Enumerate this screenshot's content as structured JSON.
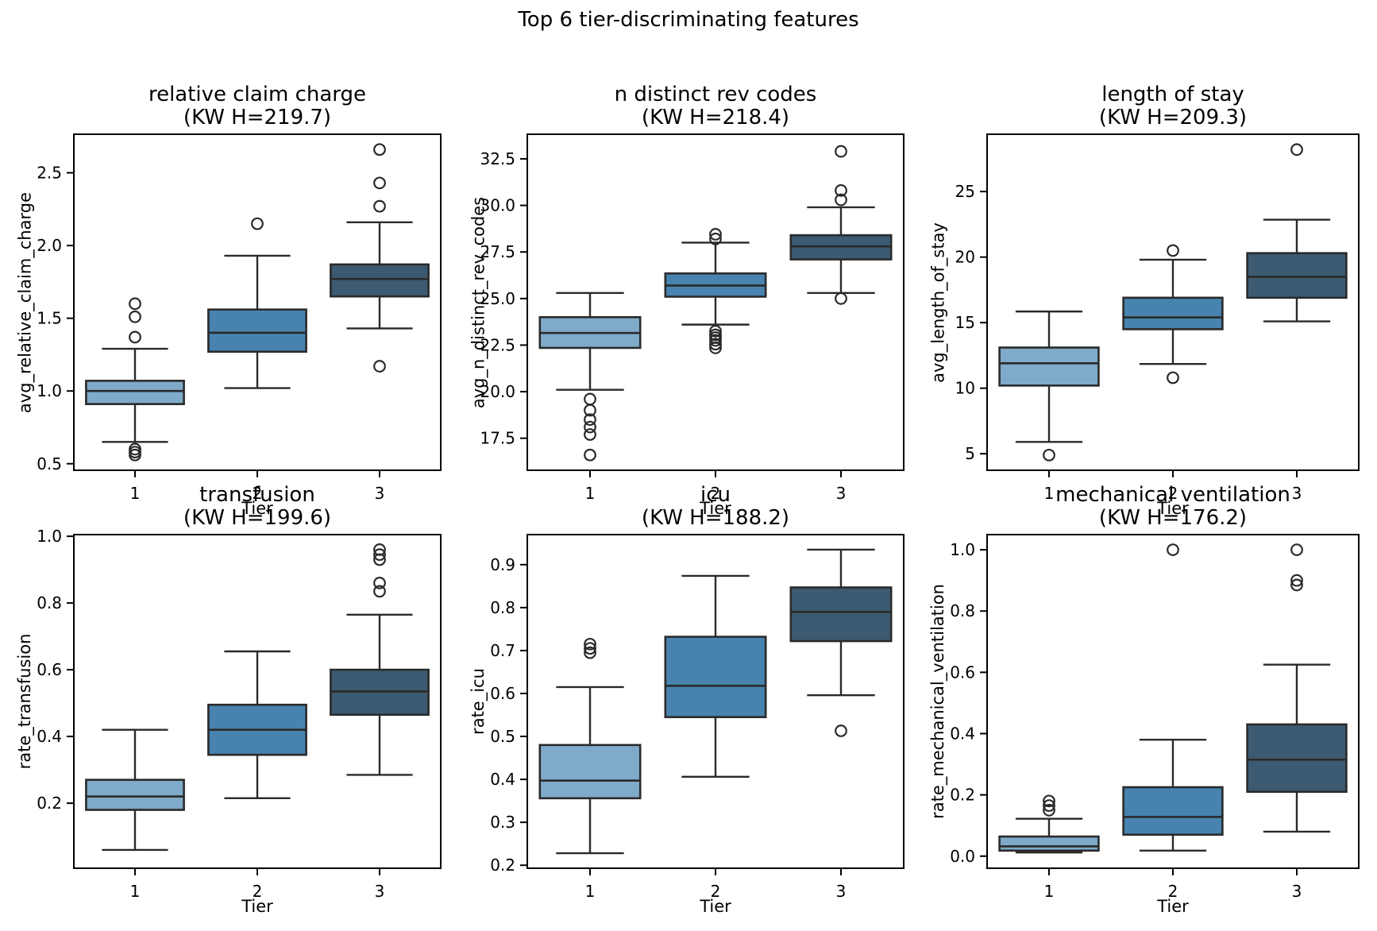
{
  "figure": {
    "suptitle": "Top 6 tier-discriminating features",
    "rows": 2,
    "cols": 3,
    "background": "#FFFFFF"
  },
  "palette": {
    "tier_fills": [
      "#7FAAC9",
      "#4783AE",
      "#3C5A71"
    ],
    "box_edge": "#2A2A2A",
    "spine": "#000000",
    "text": "#000000",
    "background": "#FFFFFF"
  },
  "chart_data": [
    {
      "type": "box",
      "title": "relative claim charge",
      "subtitle": "(KW H=219.7)",
      "kw_h": 219.7,
      "ylabel": "avg_relative_claim_charge",
      "xlabel": "Tier",
      "categories": [
        "1",
        "2",
        "3"
      ],
      "ytick_labels": [
        "0.5",
        "1.0",
        "1.5",
        "2.0",
        "2.5"
      ],
      "ylim": [
        0.455,
        2.765
      ],
      "grid": false,
      "legend": false,
      "boxes": [
        {
          "tier": "1",
          "whislo": 0.65,
          "q1": 0.91,
          "med": 1.0,
          "q3": 1.07,
          "whishi": 1.29,
          "fliers": [
            1.37,
            1.51,
            1.6,
            0.6,
            0.58,
            0.56
          ]
        },
        {
          "tier": "2",
          "whislo": 1.02,
          "q1": 1.27,
          "med": 1.4,
          "q3": 1.56,
          "whishi": 1.93,
          "fliers": [
            2.15
          ]
        },
        {
          "tier": "3",
          "whislo": 1.43,
          "q1": 1.65,
          "med": 1.77,
          "q3": 1.87,
          "whishi": 2.16,
          "fliers": [
            2.66,
            2.43,
            2.27,
            1.17
          ]
        }
      ]
    },
    {
      "type": "box",
      "title": "n distinct rev codes",
      "subtitle": "(KW H=218.4)",
      "kw_h": 218.4,
      "ylabel": "avg_n_distinct_rev_codes",
      "xlabel": "Tier",
      "categories": [
        "1",
        "2",
        "3"
      ],
      "ytick_labels": [
        "17.5",
        "20.0",
        "22.5",
        "25.0",
        "27.5",
        "30.0",
        "32.5"
      ],
      "ylim": [
        15.78,
        33.82
      ],
      "grid": false,
      "legend": false,
      "boxes": [
        {
          "tier": "1",
          "whislo": 20.1,
          "q1": 22.35,
          "med": 23.15,
          "q3": 24.0,
          "whishi": 25.3,
          "fliers": [
            19.6,
            19.0,
            18.5,
            18.1,
            17.7,
            16.6
          ]
        },
        {
          "tier": "2",
          "whislo": 23.6,
          "q1": 25.1,
          "med": 25.7,
          "q3": 26.35,
          "whishi": 28.0,
          "fliers": [
            28.45,
            28.2,
            23.25,
            23.05,
            22.9,
            22.75,
            22.55,
            22.35
          ]
        },
        {
          "tier": "3",
          "whislo": 25.3,
          "q1": 27.1,
          "med": 27.8,
          "q3": 28.4,
          "whishi": 29.9,
          "fliers": [
            32.9,
            30.8,
            30.3,
            25.0
          ]
        }
      ]
    },
    {
      "type": "box",
      "title": "length of stay",
      "subtitle": "(KW H=209.3)",
      "kw_h": 209.3,
      "ylabel": "avg_length_of_stay",
      "xlabel": "Tier",
      "categories": [
        "1",
        "2",
        "3"
      ],
      "ytick_labels": [
        "5",
        "10",
        "15",
        "20",
        "25"
      ],
      "ylim": [
        3.74,
        29.37
      ],
      "grid": false,
      "legend": false,
      "boxes": [
        {
          "tier": "1",
          "whislo": 5.9,
          "q1": 10.2,
          "med": 11.9,
          "q3": 13.1,
          "whishi": 15.85,
          "fliers": [
            4.9
          ]
        },
        {
          "tier": "2",
          "whislo": 11.85,
          "q1": 14.5,
          "med": 15.4,
          "q3": 16.9,
          "whishi": 19.8,
          "fliers": [
            20.5,
            10.8
          ]
        },
        {
          "tier": "3",
          "whislo": 15.1,
          "q1": 16.9,
          "med": 18.5,
          "q3": 20.3,
          "whishi": 22.85,
          "fliers": [
            28.2
          ]
        }
      ]
    },
    {
      "type": "box",
      "title": "transfusion",
      "subtitle": "(KW H=199.6)",
      "kw_h": 199.6,
      "ylabel": "rate_transfusion",
      "xlabel": "Tier",
      "categories": [
        "1",
        "2",
        "3"
      ],
      "ytick_labels": [
        "0.2",
        "0.4",
        "0.6",
        "0.8",
        "1.0"
      ],
      "ylim": [
        0.005,
        1.005
      ],
      "grid": false,
      "legend": false,
      "boxes": [
        {
          "tier": "1",
          "whislo": 0.06,
          "q1": 0.18,
          "med": 0.22,
          "q3": 0.27,
          "whishi": 0.42,
          "fliers": []
        },
        {
          "tier": "2",
          "whislo": 0.215,
          "q1": 0.345,
          "med": 0.42,
          "q3": 0.495,
          "whishi": 0.655,
          "fliers": []
        },
        {
          "tier": "3",
          "whislo": 0.285,
          "q1": 0.465,
          "med": 0.535,
          "q3": 0.6,
          "whishi": 0.765,
          "fliers": [
            0.96,
            0.945,
            0.93,
            0.86,
            0.835
          ]
        }
      ]
    },
    {
      "type": "box",
      "title": "icu",
      "subtitle": "(KW H=188.2)",
      "kw_h": 188.2,
      "ylabel": "rate_icu",
      "xlabel": "Tier",
      "categories": [
        "1",
        "2",
        "3"
      ],
      "ytick_labels": [
        "0.2",
        "0.3",
        "0.4",
        "0.5",
        "0.6",
        "0.7",
        "0.8",
        "0.9"
      ],
      "ylim": [
        0.193,
        0.97
      ],
      "grid": false,
      "legend": false,
      "boxes": [
        {
          "tier": "1",
          "whislo": 0.228,
          "q1": 0.356,
          "med": 0.397,
          "q3": 0.48,
          "whishi": 0.615,
          "fliers": [
            0.715,
            0.705,
            0.695
          ]
        },
        {
          "tier": "2",
          "whislo": 0.406,
          "q1": 0.545,
          "med": 0.618,
          "q3": 0.732,
          "whishi": 0.874,
          "fliers": []
        },
        {
          "tier": "3",
          "whislo": 0.596,
          "q1": 0.722,
          "med": 0.79,
          "q3": 0.847,
          "whishi": 0.935,
          "fliers": [
            0.513
          ]
        }
      ]
    },
    {
      "type": "box",
      "title": "mechanical ventilation",
      "subtitle": "(KW H=176.2)",
      "kw_h": 176.2,
      "ylabel": "rate_mechanical_ventilation",
      "xlabel": "Tier",
      "categories": [
        "1",
        "2",
        "3"
      ],
      "ytick_labels": [
        "0.0",
        "0.2",
        "0.4",
        "0.6",
        "0.8",
        "1.0"
      ],
      "ylim": [
        -0.0395,
        1.0495
      ],
      "grid": false,
      "legend": false,
      "boxes": [
        {
          "tier": "1",
          "whislo": 0.012,
          "q1": 0.018,
          "med": 0.032,
          "q3": 0.064,
          "whishi": 0.122,
          "fliers": [
            0.18,
            0.165,
            0.15
          ]
        },
        {
          "tier": "2",
          "whislo": 0.018,
          "q1": 0.07,
          "med": 0.128,
          "q3": 0.225,
          "whishi": 0.38,
          "fliers": [
            1.0
          ]
        },
        {
          "tier": "3",
          "whislo": 0.08,
          "q1": 0.21,
          "med": 0.315,
          "q3": 0.43,
          "whishi": 0.625,
          "fliers": [
            1.0,
            0.9,
            0.885
          ]
        }
      ]
    }
  ]
}
